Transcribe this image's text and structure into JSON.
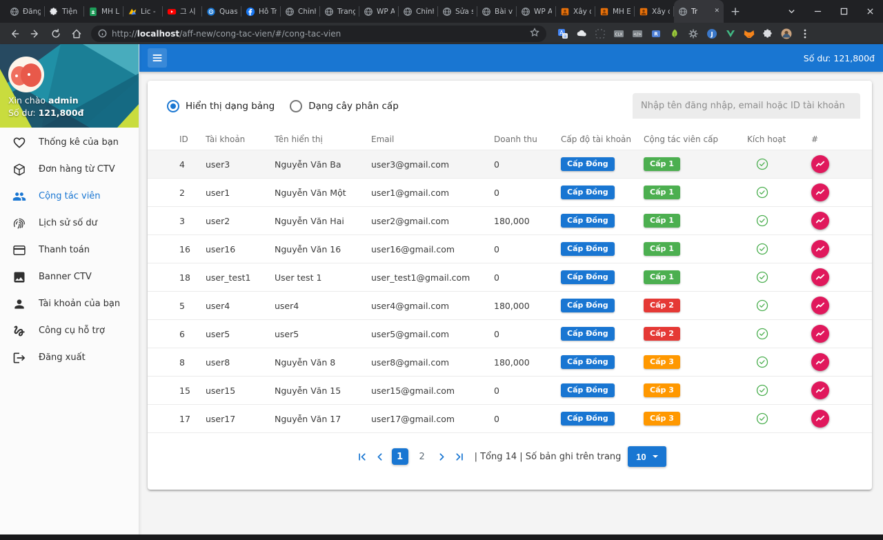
{
  "browser": {
    "tabs": [
      {
        "label": "Đăng",
        "icon": "globe"
      },
      {
        "label": "Tiện í",
        "icon": "puzzle"
      },
      {
        "label": "MH Li",
        "icon": "sheets"
      },
      {
        "label": "Lic - P",
        "icon": "colorful"
      },
      {
        "label": "그 시",
        "icon": "youtube"
      },
      {
        "label": "Quasa",
        "icon": "quasar"
      },
      {
        "label": "Hỗ Tr",
        "icon": "facebook"
      },
      {
        "label": "Chỉnh",
        "icon": "globe"
      },
      {
        "label": "Trang",
        "icon": "globe"
      },
      {
        "label": "WP A",
        "icon": "globe"
      },
      {
        "label": "Chỉnh",
        "icon": "globe"
      },
      {
        "label": "Sửa s",
        "icon": "globe"
      },
      {
        "label": "Bài vi",
        "icon": "globe"
      },
      {
        "label": "WP A",
        "icon": "globe"
      },
      {
        "label": "Xây d",
        "icon": "orange"
      },
      {
        "label": "MH E",
        "icon": "orange"
      },
      {
        "label": "Xây d",
        "icon": "orange"
      },
      {
        "label": "Tr",
        "icon": "globe",
        "active": true
      }
    ],
    "new_tab": "+",
    "url": {
      "scheme": "http://",
      "host": "localhost",
      "path": "/aff-new/cong-tac-vien/#/cong-tac-vien"
    },
    "extensions": [
      "translate",
      "cloud",
      "dotted",
      "clx",
      "code",
      "rtag",
      "leaf",
      "gear",
      "json",
      "vue",
      "fox",
      "puzzle-gray",
      "profile",
      "menu-dots"
    ]
  },
  "topbar": {
    "balance": "Số dư: 121,800đ"
  },
  "sidebar": {
    "greeting_prefix": "Xin chào",
    "username": "admin",
    "balance_label": "Số dư:",
    "balance": "121,800đ",
    "items": [
      {
        "label": "Thống kê của bạn",
        "icon": "heart"
      },
      {
        "label": "Đơn hàng từ CTV",
        "icon": "cube"
      },
      {
        "label": "Cộng tác viên",
        "icon": "people",
        "active": true
      },
      {
        "label": "Lịch sử số dư",
        "icon": "fingerprint"
      },
      {
        "label": "Thanh toán",
        "icon": "card"
      },
      {
        "label": "Banner CTV",
        "icon": "image"
      },
      {
        "label": "Tài khoản của bạn",
        "icon": "person"
      },
      {
        "label": "Công cụ hỗ trợ",
        "icon": "gesture"
      },
      {
        "label": "Đăng xuất",
        "icon": "logout"
      }
    ]
  },
  "view_toggle": {
    "options": [
      {
        "label": "Hiển thị dạng bảng",
        "selected": true
      },
      {
        "label": "Dạng cây phân cấp",
        "selected": false
      }
    ]
  },
  "search": {
    "placeholder": "Nhập tên đăng nhập, email hoặc ID tài khoản"
  },
  "table": {
    "columns": [
      "ID",
      "Tài khoản",
      "Tên hiển thị",
      "Email",
      "Doanh thu",
      "Cấp độ tài khoản",
      "Cộng tác viên cấp",
      "Kích hoạt",
      "#"
    ],
    "rows": [
      {
        "id": "4",
        "account": "user3",
        "display_name": "Nguyễn Văn Ba",
        "email": "user3@gmail.com",
        "revenue": "0",
        "level": "Cấp Đồng",
        "ctv_level": "Cấp 1",
        "ctv_color": "green",
        "active": true
      },
      {
        "id": "2",
        "account": "user1",
        "display_name": "Nguyễn Văn Một",
        "email": "user1@gmail.com",
        "revenue": "0",
        "level": "Cấp Đồng",
        "ctv_level": "Cấp 1",
        "ctv_color": "green",
        "active": true
      },
      {
        "id": "3",
        "account": "user2",
        "display_name": "Nguyễn Văn Hai",
        "email": "user2@gmail.com",
        "revenue": "180,000",
        "level": "Cấp Đồng",
        "ctv_level": "Cấp 1",
        "ctv_color": "green",
        "active": true
      },
      {
        "id": "16",
        "account": "user16",
        "display_name": "Nguyễn Văn 16",
        "email": "user16@gmail.com",
        "revenue": "0",
        "level": "Cấp Đồng",
        "ctv_level": "Cấp 1",
        "ctv_color": "green",
        "active": true
      },
      {
        "id": "18",
        "account": "user_test1",
        "display_name": "User test 1",
        "email": "user_test1@gmail.com",
        "revenue": "0",
        "level": "Cấp Đồng",
        "ctv_level": "Cấp 1",
        "ctv_color": "green",
        "active": true
      },
      {
        "id": "5",
        "account": "user4",
        "display_name": "user4",
        "email": "user4@gmail.com",
        "revenue": "180,000",
        "level": "Cấp Đồng",
        "ctv_level": "Cấp 2",
        "ctv_color": "red",
        "active": true
      },
      {
        "id": "6",
        "account": "user5",
        "display_name": "user5",
        "email": "user5@gmail.com",
        "revenue": "0",
        "level": "Cấp Đồng",
        "ctv_level": "Cấp 2",
        "ctv_color": "red",
        "active": true
      },
      {
        "id": "8",
        "account": "user8",
        "display_name": "Nguyễn Văn 8",
        "email": "user8@gmail.com",
        "revenue": "180,000",
        "level": "Cấp Đồng",
        "ctv_level": "Cấp 3",
        "ctv_color": "orange",
        "active": true
      },
      {
        "id": "15",
        "account": "user15",
        "display_name": "Nguyễn Văn 15",
        "email": "user15@gmail.com",
        "revenue": "0",
        "level": "Cấp Đồng",
        "ctv_level": "Cấp 3",
        "ctv_color": "orange",
        "active": true
      },
      {
        "id": "17",
        "account": "user17",
        "display_name": "Nguyễn Văn 17",
        "email": "user17@gmail.com",
        "revenue": "0",
        "level": "Cấp Đồng",
        "ctv_level": "Cấp 3",
        "ctv_color": "orange",
        "active": true
      }
    ]
  },
  "pagination": {
    "pages": [
      "1",
      "2"
    ],
    "current": "1",
    "summary": "| Tổng 14 | Số bản ghi trên trang",
    "per_page": "10"
  },
  "colors": {
    "primary": "#1976d2",
    "level_badge": "#1976d2",
    "ctv_green": "#4caf50",
    "ctv_red": "#e53935",
    "ctv_orange": "#ff9800",
    "action_pink": "#e0185c",
    "active_check": "#4caf50"
  }
}
